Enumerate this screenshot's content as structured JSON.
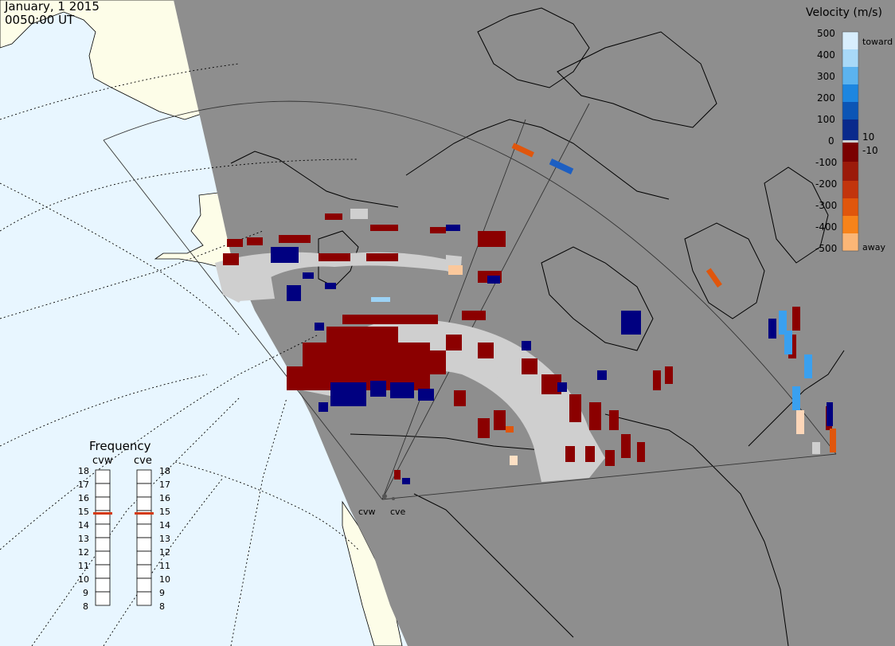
{
  "header": {
    "date": "January, 1 2015",
    "time": "0050:00 UT"
  },
  "velocity_legend": {
    "title": "Velocity (m/s)",
    "ticks": [
      "500",
      "400",
      "300",
      "200",
      "100",
      "0",
      "-100",
      "-200",
      "-300",
      "-400",
      "-500"
    ],
    "small_labels": [
      "10",
      "-10"
    ],
    "toward_label": "toward",
    "away_label": "away",
    "scale_colors": [
      "#d8eefd",
      "#a8d9f8",
      "#5bb3ef",
      "#1d86e0",
      "#0c55b5",
      "#0a2a8c",
      "#000060",
      "#7a0000",
      "#9b1a0a",
      "#c2340c",
      "#e0560c",
      "#f7831a",
      "#fbb676",
      "#fde0c4"
    ]
  },
  "frequency_legend": {
    "title": "Frequency",
    "radars": [
      "cvw",
      "cve"
    ],
    "scale": [
      "18",
      "17",
      "16",
      "15",
      "14",
      "13",
      "12",
      "11",
      "10",
      "9",
      "8"
    ],
    "cvw_frequency": 15,
    "cve_frequency": 15
  },
  "radar_sites": [
    "cvw",
    "cve"
  ],
  "colors": {
    "ocean": "#e8f6ff",
    "land_lit": "#fdfde8",
    "night_shade": "#8e8e8e",
    "ground_scatter": "#cfcfcf",
    "marker": "#d43a12"
  }
}
